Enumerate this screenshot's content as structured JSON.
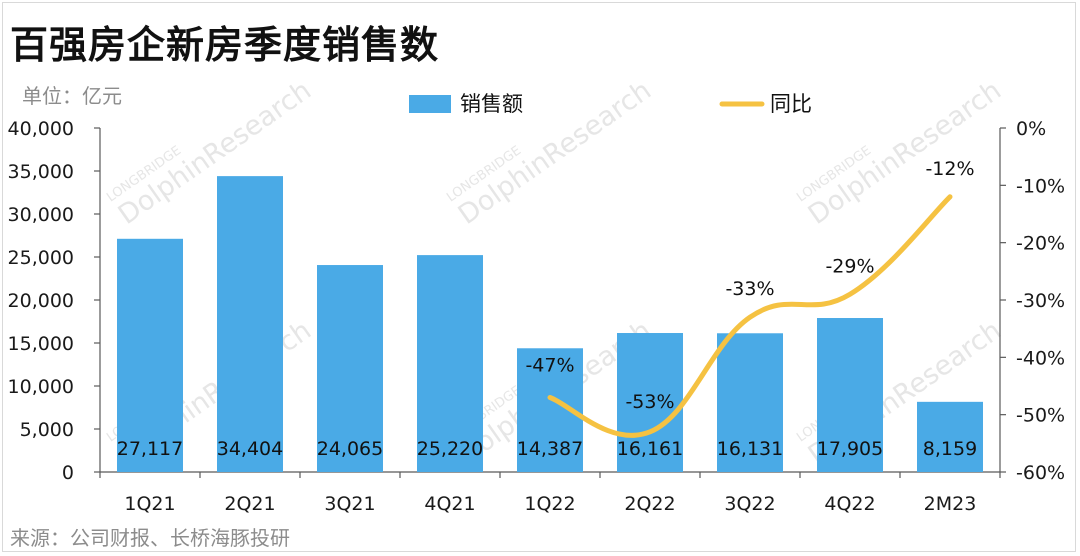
{
  "title": "百强房企新房季度销售数",
  "unit": "单位：亿元",
  "source": "来源：公司财报、长桥海豚投研",
  "watermark": {
    "brand": "LONGBRIDGE",
    "name": "DolphinResearch"
  },
  "colors": {
    "bar": "#4aaae6",
    "line": "#f5c242",
    "axis": "#595959"
  },
  "chart_data": {
    "type": "bar",
    "categories": [
      "1Q21",
      "2Q21",
      "3Q21",
      "4Q21",
      "1Q22",
      "2Q22",
      "3Q22",
      "4Q22",
      "2M23"
    ],
    "series": [
      {
        "name": "销售额",
        "type": "bar",
        "axis": "left",
        "values": [
          27117,
          34404,
          24065,
          25220,
          14387,
          16161,
          16131,
          17905,
          8159
        ],
        "labels": [
          "27,117",
          "34,404",
          "24,065",
          "25,220",
          "14,387",
          "16,161",
          "16,131",
          "17,905",
          "8,159"
        ]
      },
      {
        "name": "同比",
        "type": "line",
        "axis": "right",
        "x": [
          "1Q22",
          "2Q22",
          "3Q22",
          "4Q22",
          "2M23"
        ],
        "values": [
          -47,
          -53,
          -33,
          -29,
          -12
        ],
        "labels": [
          "-47%",
          "-53%",
          "-33%",
          "-29%",
          "-12%"
        ]
      }
    ],
    "y_left": {
      "range": [
        0,
        40000
      ],
      "ticks": [
        "0",
        "5,000",
        "10,000",
        "15,000",
        "20,000",
        "25,000",
        "30,000",
        "35,000",
        "40,000"
      ]
    },
    "y_right": {
      "range": [
        -60,
        0
      ],
      "ticks": [
        "-60%",
        "-50%",
        "-40%",
        "-30%",
        "-20%",
        "-10%",
        "0%"
      ]
    },
    "grid": false,
    "legend": "top-center"
  }
}
